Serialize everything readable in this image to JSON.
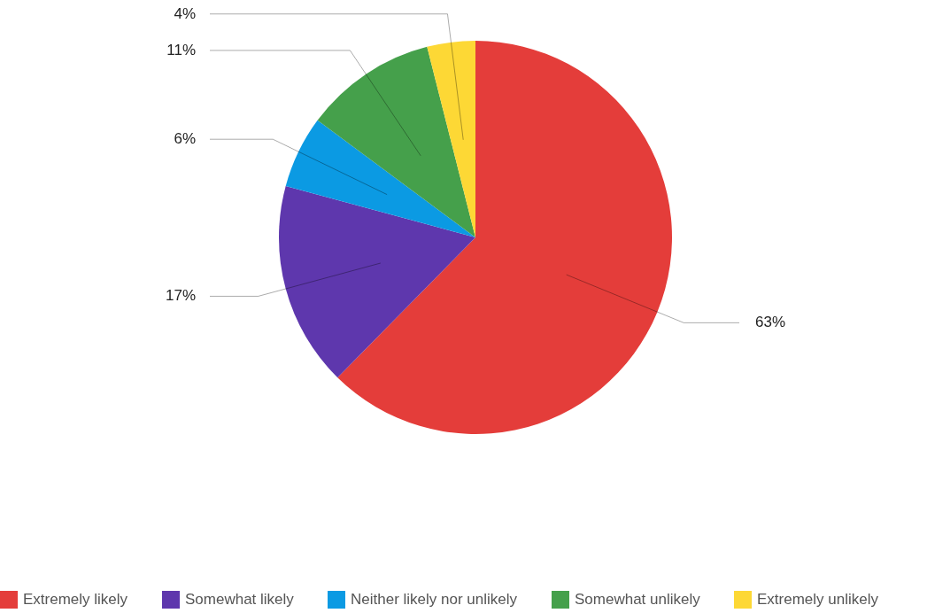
{
  "chart_data": {
    "type": "pie",
    "categories": [
      "Extremely likely",
      "Somewhat likely",
      "Neither likely nor unlikely",
      "Somewhat unlikely",
      "Extremely unlikely"
    ],
    "values": [
      63,
      17,
      6,
      11,
      4
    ],
    "colors": [
      "#e43d3a",
      "#5e37ad",
      "#0b9ae3",
      "#45a04b",
      "#fdd835"
    ],
    "value_labels": [
      "63%",
      "17%",
      "6%",
      "11%",
      "4%"
    ],
    "legend": "bottom"
  }
}
